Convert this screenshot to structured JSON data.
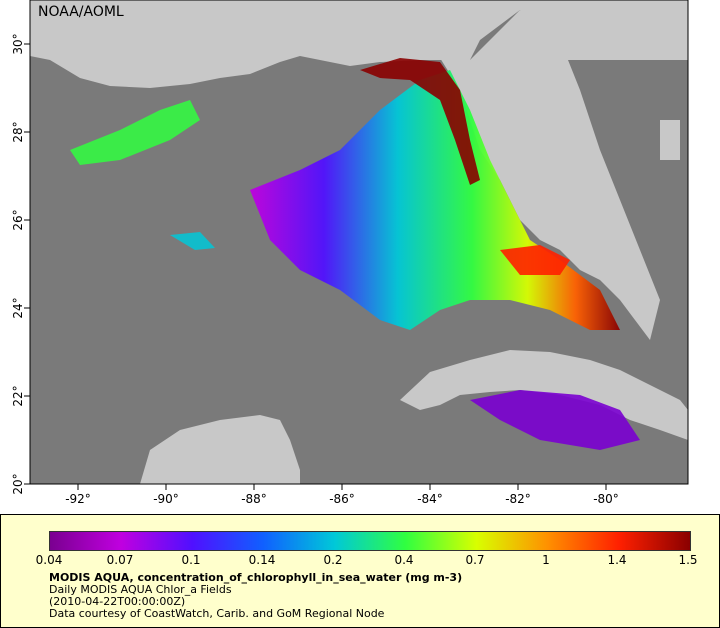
{
  "map": {
    "brand_label": "NOAA/AOML",
    "lon_ticks": [
      "-92°",
      "-90°",
      "-88°",
      "-86°",
      "-84°",
      "-82°",
      "-80°"
    ],
    "lat_ticks": [
      "30°",
      "28°",
      "26°",
      "24°",
      "22°",
      "20°"
    ],
    "colors": {
      "ocean_no_data": "#7a7a7a",
      "land": "#c8c8c8",
      "frame": "#000000"
    }
  },
  "legend": {
    "scale_labels": [
      "0.04",
      "0.07",
      "0.1",
      "0.14",
      "0.2",
      "0.4",
      "0.7",
      "1",
      "1.4",
      "1.5"
    ],
    "title": "MODIS AQUA, concentration_of_chlorophyll_in_sea_water (mg m-3)",
    "line1": "Daily MODIS AQUA Chlor_a Fields",
    "line2": "(2010-04-22T00:00:00Z)",
    "line3": "Data courtesy of CoastWatch, Carib. and GoM Regional Node",
    "gradient_colors": [
      "#7a0090",
      "#c000e0",
      "#5010ff",
      "#1060ff",
      "#00c8d8",
      "#30ff40",
      "#d8ff00",
      "#ff9000",
      "#ff2000",
      "#8a0000"
    ]
  }
}
